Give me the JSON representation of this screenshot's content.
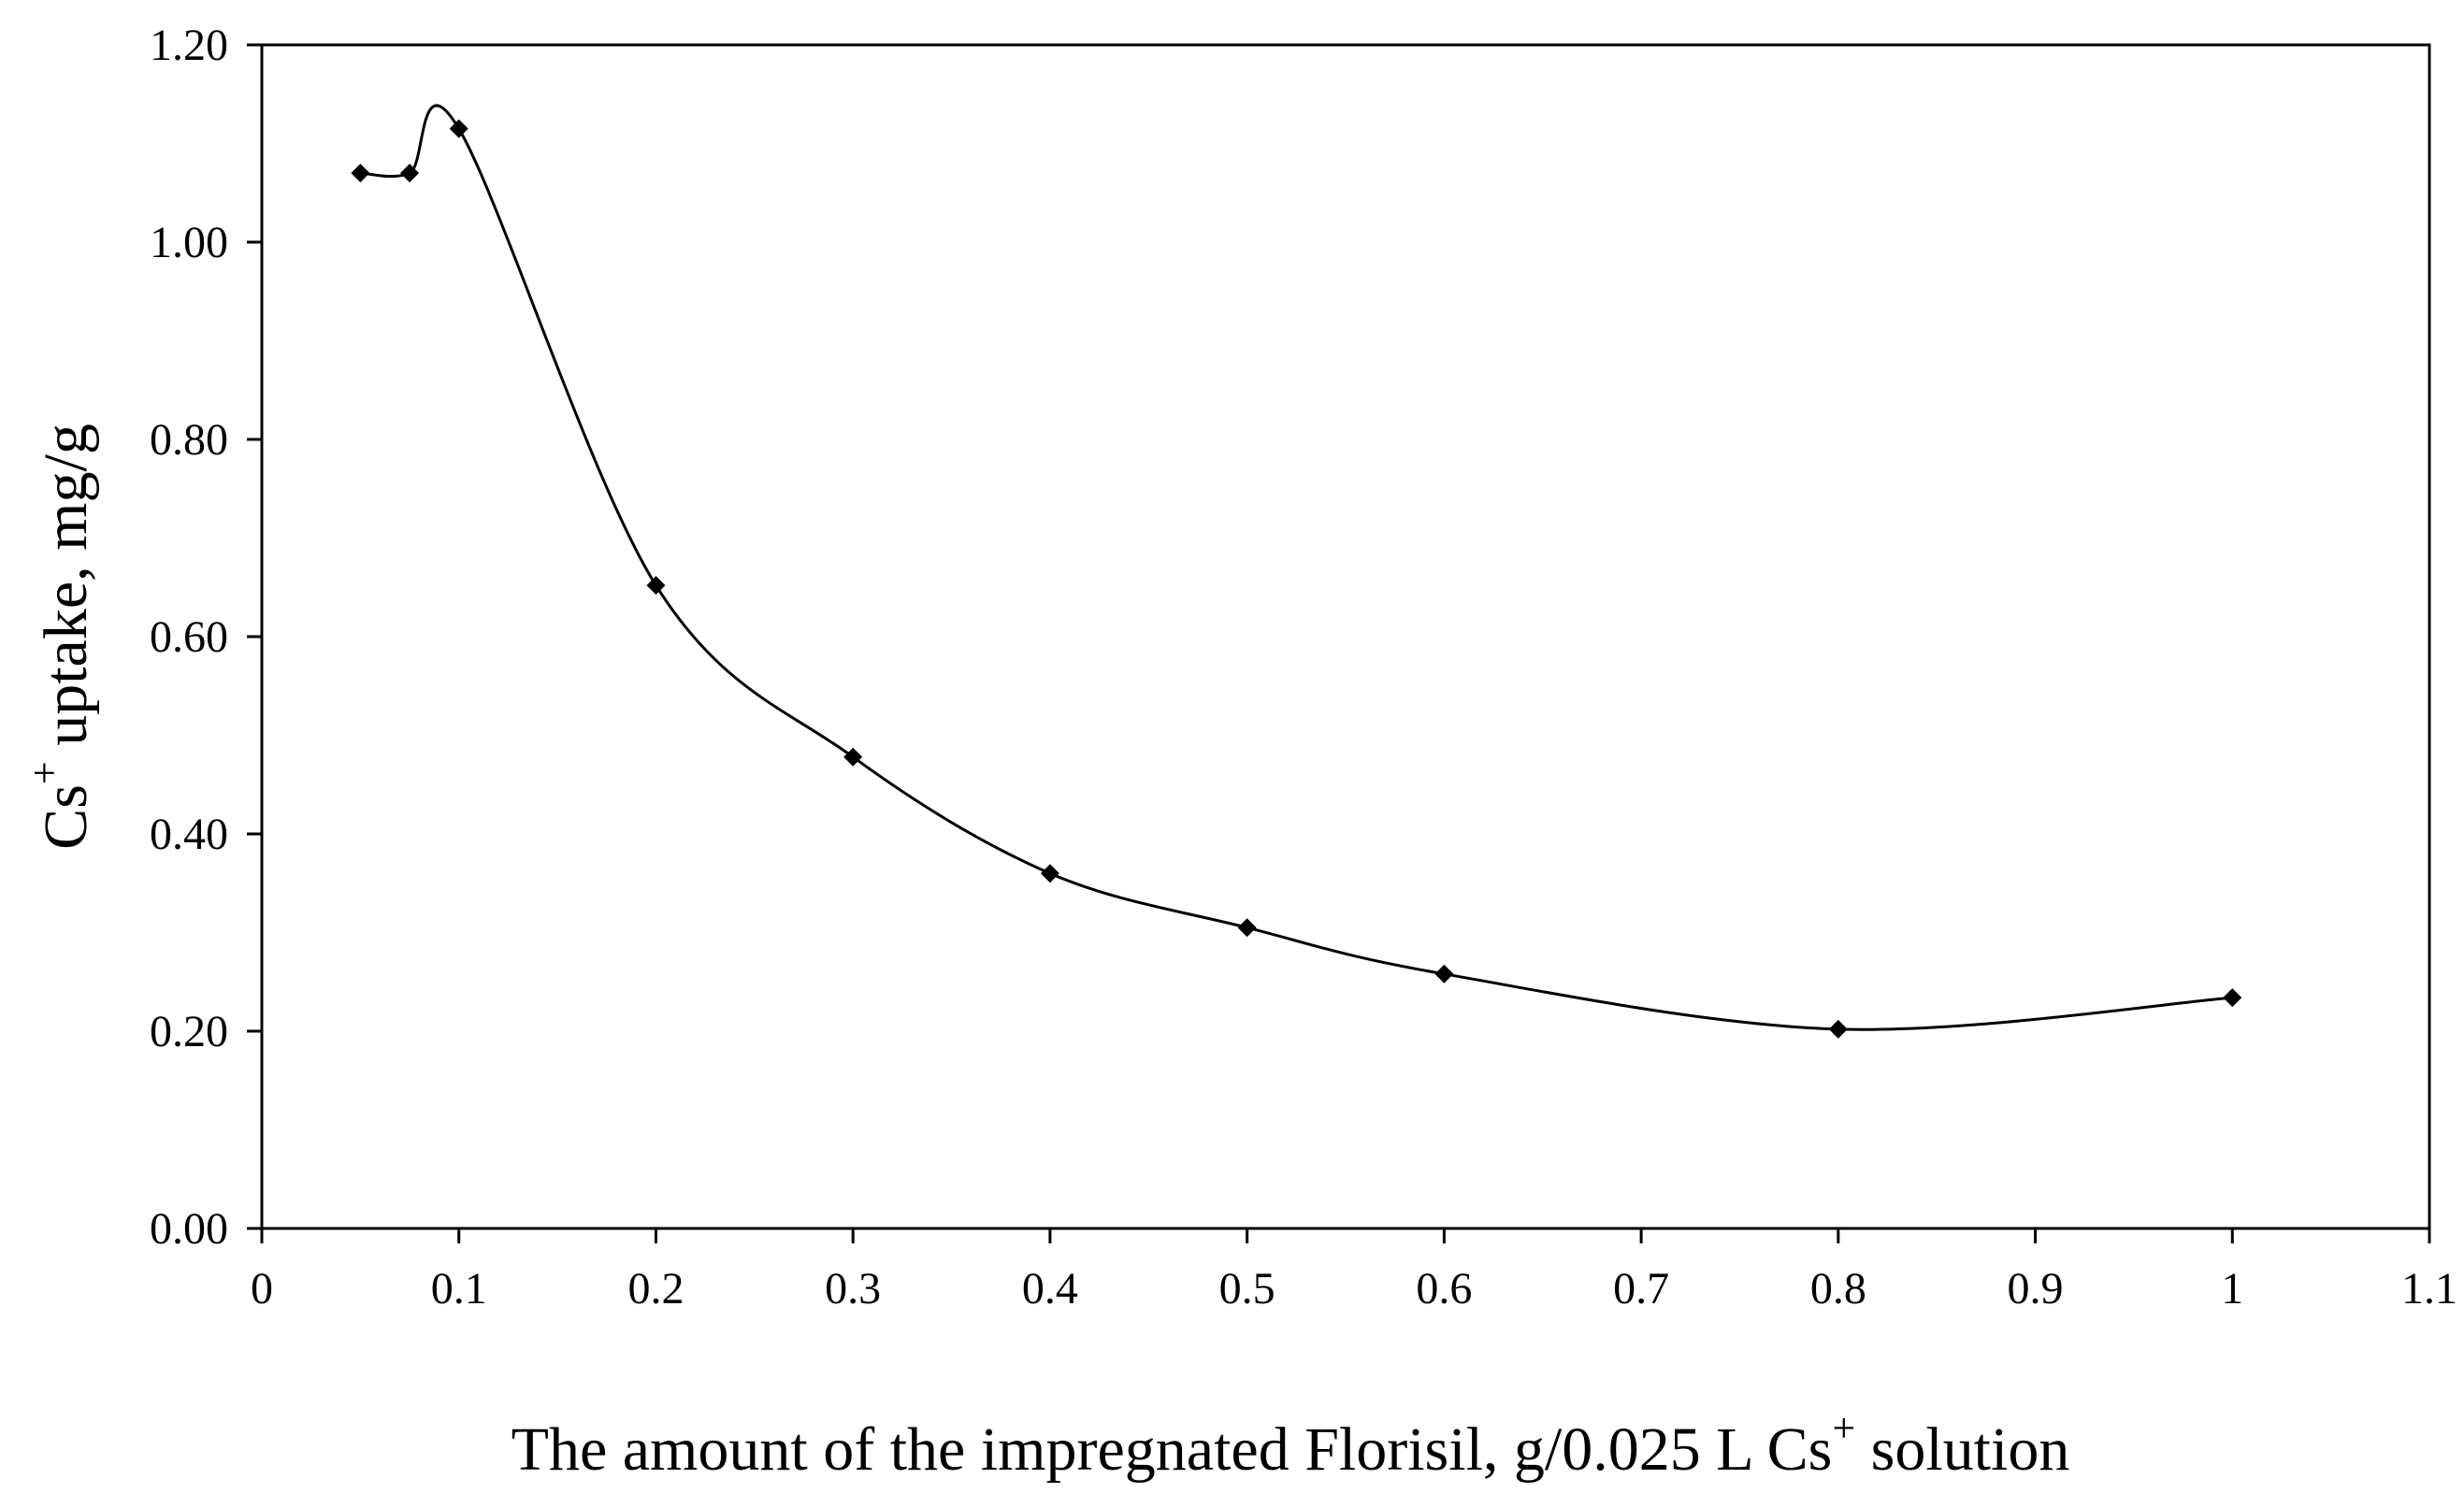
{
  "chart_data": {
    "type": "line",
    "title": "",
    "xlabel": {
      "main": "The amount of the impregnated Florisil, g/0.025 L Cs",
      "sup": "+",
      "tail": " solution"
    },
    "ylabel": {
      "main": "Cs",
      "sup": "+",
      "tail": " uptake, mg/g"
    },
    "xlim": [
      0,
      1.1
    ],
    "ylim": [
      0,
      1.2
    ],
    "x_ticks": [
      {
        "v": 0,
        "label": "0"
      },
      {
        "v": 0.1,
        "label": "0.1"
      },
      {
        "v": 0.2,
        "label": "0.2"
      },
      {
        "v": 0.3,
        "label": "0.3"
      },
      {
        "v": 0.4,
        "label": "0.4"
      },
      {
        "v": 0.5,
        "label": "0.5"
      },
      {
        "v": 0.6,
        "label": "0.6"
      },
      {
        "v": 0.7,
        "label": "0.7"
      },
      {
        "v": 0.8,
        "label": "0.8"
      },
      {
        "v": 0.9,
        "label": "0.9"
      },
      {
        "v": 1.0,
        "label": "1"
      },
      {
        "v": 1.1,
        "label": "1.1"
      }
    ],
    "y_ticks": [
      {
        "v": 0,
        "label": "0.00"
      },
      {
        "v": 0.2,
        "label": "0.20"
      },
      {
        "v": 0.4,
        "label": "0.40"
      },
      {
        "v": 0.6,
        "label": "0.60"
      },
      {
        "v": 0.8,
        "label": "0.80"
      },
      {
        "v": 1.0,
        "label": "1.00"
      },
      {
        "v": 1.2,
        "label": "1.20"
      }
    ],
    "grid": false,
    "legend": "none",
    "series": [
      {
        "name": "Cs+ uptake",
        "color": "#000000",
        "marker": "diamond",
        "smooth": true,
        "x": [
          0.05,
          0.075,
          0.1,
          0.2,
          0.3,
          0.4,
          0.5,
          0.6,
          0.8,
          1.0
        ],
        "y": [
          1.07,
          1.07,
          1.115,
          0.652,
          0.478,
          0.36,
          0.305,
          0.258,
          0.202,
          0.234
        ]
      }
    ]
  }
}
